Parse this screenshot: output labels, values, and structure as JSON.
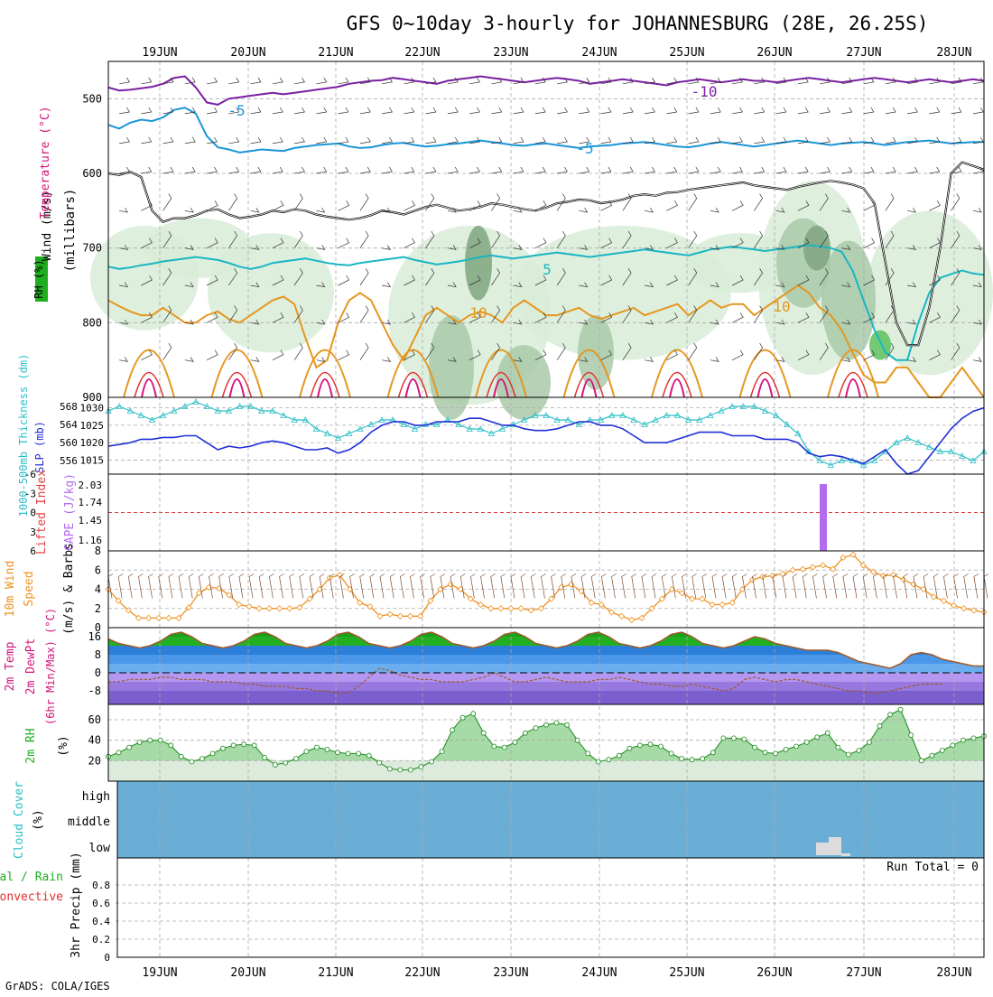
{
  "title": "GFS 0~10day 3-hourly for JOHANNESBURG (28E, 26.25S)",
  "footer": "GrADS: COLA/IGES",
  "dates": [
    "19JUN",
    "20JUN",
    "21JUN",
    "22JUN",
    "23JUN",
    "24JUN",
    "25JUN",
    "26JUN",
    "27JUN",
    "28JUN"
  ],
  "colors": {
    "grid": "#aaaaaa",
    "rh_green": "#1fae1f",
    "temp_purple": "#7b1fa2",
    "temp_blue": "#1a96d8",
    "temp_cyan": "#19b6c2",
    "temp_orange": "#e6961f",
    "temp_red": "#d4147c",
    "slp_blue": "#1f2fd6",
    "thick_cyan": "#2bbfc6",
    "cape_purple": "#b36cf0",
    "wind_orange": "#f0901f",
    "cloud_blue": "#6aaed6"
  },
  "panels": {
    "upper": {
      "ylabel_wind": "Wind (m/s)",
      "ylabel_temp": "Temperature (°C)",
      "ylabel_rh": "RH (%)",
      "ylabel_pres": "(millibars)",
      "yticks": [
        "500",
        "600",
        "700",
        "800",
        "900"
      ],
      "contour_labels": [
        "-10",
        "-5",
        "-5",
        "5",
        "10",
        "10"
      ]
    },
    "slp": {
      "ylabel_thick": "1000-500mb Thickness (dm)",
      "ylabel_slp": "SLP (mb)",
      "thick_ticks": [
        "568",
        "564",
        "560",
        "556"
      ],
      "slp_ticks": [
        "1030",
        "1025",
        "1020",
        "1015"
      ]
    },
    "cape": {
      "ylabel_li": "Lifted Index",
      "ylabel_cape": "CAPE (J/kg)",
      "li_ticks": [
        "-6",
        "-3",
        "0",
        "3",
        "6"
      ],
      "cape_ticks": [
        "2.03",
        "1.74",
        "1.45",
        "1.16"
      ]
    },
    "wind10": {
      "ylabel_a": "10m Wind",
      "ylabel_b": "Speed",
      "ylabel_c": "(m/s) & Barbs",
      "yticks": [
        "8",
        "6",
        "4",
        "2",
        "0"
      ]
    },
    "temp2m": {
      "ylabel_a": "2m Temp",
      "ylabel_b": "2m DewPt",
      "ylabel_c": "(6hr Min/Max) (°C)",
      "yticks": [
        "16",
        "8",
        "0",
        "-8"
      ]
    },
    "rh2m": {
      "ylabel_a": "2m RH",
      "ylabel_b": "(%)",
      "yticks": [
        "60",
        "40",
        "20"
      ]
    },
    "cloud": {
      "ylabel_a": "Cloud Cover",
      "ylabel_b": "(%)",
      "levels": [
        "high",
        "middle",
        "low"
      ]
    },
    "precip": {
      "ylabel_a": "Total / Rain",
      "ylabel_b": "Convective",
      "ylabel_c": "3hr Precip (mm)",
      "yticks": [
        "0.8",
        "0.6",
        "0.4",
        "0.2",
        "0"
      ],
      "run_total": "Run Total = 0"
    }
  },
  "chart_data": [
    {
      "type": "line",
      "name": "upper_air_isotherms",
      "x_unit": "3-hourly steps from 18JUN 12Z",
      "y_unit": "millibars",
      "ylim": [
        900,
        450
      ],
      "series": [
        {
          "name": "-10",
          "values": [
            485,
            489,
            488,
            486,
            484,
            480,
            472,
            470,
            485,
            505,
            508,
            500,
            498,
            496,
            494,
            492,
            494,
            492,
            490,
            488,
            486,
            484,
            480,
            478,
            476,
            475,
            472,
            474,
            476,
            478,
            480,
            476,
            474,
            472,
            470,
            472,
            474,
            476,
            478,
            476,
            474,
            472,
            474,
            476,
            480,
            478,
            476,
            474,
            476,
            478,
            480,
            482,
            478,
            476,
            474,
            476,
            478,
            476,
            474,
            476,
            476,
            478,
            476,
            474,
            472,
            474,
            476,
            478,
            476,
            474,
            472,
            474,
            476,
            478,
            476,
            474,
            476,
            478,
            476,
            474,
            476
          ]
        },
        {
          "name": "-5",
          "values": [
            535,
            540,
            532,
            528,
            530,
            525,
            515,
            512,
            520,
            550,
            565,
            568,
            572,
            570,
            568,
            569,
            570,
            566,
            564,
            562,
            561,
            560,
            564,
            566,
            565,
            562,
            560,
            559,
            562,
            564,
            563,
            561,
            560,
            558,
            556,
            558,
            560,
            562,
            563,
            561,
            560,
            562,
            564,
            566,
            564,
            563,
            562,
            560,
            559,
            558,
            560,
            562,
            564,
            565,
            563,
            560,
            558,
            560,
            562,
            564,
            562,
            560,
            558,
            556,
            558,
            560,
            562,
            560,
            559,
            558,
            560,
            562,
            560,
            558,
            557,
            556,
            558,
            560,
            559,
            558,
            558
          ]
        },
        {
          "name": "5",
          "values": [
            725,
            728,
            726,
            723,
            721,
            718,
            716,
            714,
            712,
            714,
            716,
            720,
            725,
            728,
            725,
            720,
            718,
            716,
            714,
            717,
            720,
            722,
            723,
            720,
            718,
            716,
            714,
            712,
            716,
            719,
            722,
            720,
            718,
            715,
            712,
            710,
            712,
            714,
            712,
            710,
            708,
            706,
            708,
            710,
            712,
            710,
            708,
            706,
            704,
            702,
            704,
            706,
            708,
            710,
            706,
            702,
            700,
            698,
            700,
            702,
            704,
            702,
            700,
            698,
            696,
            698,
            700,
            705,
            730,
            770,
            810,
            840,
            850,
            850,
            800,
            760,
            740,
            735,
            730,
            734,
            736
          ]
        },
        {
          "name": "10",
          "values": [
            770,
            778,
            785,
            790,
            790,
            780,
            790,
            800,
            800,
            790,
            785,
            795,
            800,
            790,
            780,
            770,
            765,
            775,
            820,
            860,
            850,
            800,
            770,
            760,
            770,
            800,
            830,
            850,
            820,
            790,
            780,
            790,
            800,
            790,
            785,
            790,
            800,
            780,
            770,
            780,
            790,
            790,
            785,
            780,
            790,
            795,
            790,
            785,
            780,
            790,
            785,
            780,
            775,
            790,
            780,
            770,
            780,
            775,
            775,
            790,
            780,
            770,
            760,
            750,
            760,
            780,
            790,
            810,
            840,
            870,
            880,
            880,
            860,
            860,
            880,
            900,
            900,
            880,
            860,
            880,
            900
          ]
        },
        {
          "name": "0 (freezing level)",
          "values": [
            600,
            602,
            598,
            605,
            650,
            665,
            660,
            660,
            656,
            650,
            648,
            655,
            660,
            658,
            655,
            650,
            652,
            648,
            650,
            655,
            658,
            660,
            662,
            660,
            656,
            650,
            652,
            655,
            650,
            645,
            642,
            646,
            650,
            648,
            645,
            640,
            642,
            645,
            648,
            650,
            646,
            640,
            638,
            635,
            636,
            640,
            638,
            635,
            630,
            628,
            630,
            626,
            625,
            622,
            620,
            618,
            616,
            614,
            612,
            616,
            618,
            620,
            622,
            618,
            615,
            612,
            610,
            612,
            615,
            620,
            640,
            720,
            800,
            830,
            830,
            780,
            700,
            600,
            585,
            590,
            595
          ]
        }
      ]
    },
    {
      "type": "line",
      "name": "slp_and_thickness",
      "series": [
        {
          "name": "SLP (mb)",
          "values": [
            1019,
            1019.5,
            1020,
            1021,
            1021,
            1021.5,
            1021.5,
            1022,
            1022,
            1020,
            1018,
            1019,
            1018.5,
            1019,
            1020,
            1020.5,
            1020,
            1019,
            1018,
            1018,
            1018.5,
            1017,
            1018,
            1020,
            1023,
            1025,
            1026,
            1026,
            1025,
            1025,
            1026,
            1026,
            1026,
            1027,
            1027,
            1026,
            1025,
            1025,
            1024,
            1023.5,
            1023.5,
            1024,
            1025,
            1026,
            1026,
            1025,
            1025,
            1024,
            1022,
            1020,
            1020,
            1020,
            1021,
            1022,
            1023,
            1023,
            1023,
            1022,
            1022,
            1022,
            1021,
            1021,
            1021,
            1020,
            1017,
            1016,
            1016.5,
            1016,
            1015,
            1014,
            1016,
            1018,
            1014,
            1011,
            1012,
            1016,
            1020,
            1024,
            1027,
            1029,
            1030
          ]
        },
        {
          "name": "1000-500mb Thickness (dm)",
          "values": [
            567,
            568,
            567,
            566,
            565,
            566,
            567,
            568,
            569,
            568,
            567,
            567,
            568,
            568,
            567,
            567,
            566,
            565,
            565,
            563,
            562,
            561,
            562,
            563,
            564,
            565,
            565,
            564,
            563,
            564,
            564,
            565,
            564,
            563,
            563,
            562,
            563,
            564,
            565,
            566,
            566,
            565,
            565,
            564,
            565,
            565,
            566,
            566,
            565,
            564,
            565,
            566,
            566,
            565,
            565,
            566,
            567,
            568,
            568,
            568,
            567,
            566,
            564,
            562,
            558,
            556,
            555,
            556,
            556,
            555,
            556,
            558,
            560,
            561,
            560,
            559,
            558,
            558,
            557,
            556,
            558
          ]
        }
      ]
    },
    {
      "type": "bar",
      "name": "cape",
      "note": "single CAPE bar near 26JUN 12Z",
      "categories": [
        "26JUN"
      ],
      "values": [
        2.03
      ]
    },
    {
      "type": "line",
      "name": "wind10m_speed",
      "y_unit": "m/s",
      "ylim": [
        0,
        8
      ],
      "values": [
        4,
        2.8,
        1.8,
        1,
        1,
        1,
        1,
        1,
        2.1,
        3.6,
        4.2,
        4.1,
        3.4,
        2.4,
        2.2,
        2.0,
        2.0,
        2.0,
        2.0,
        2.1,
        3.0,
        4.0,
        5.2,
        5.5,
        4.0,
        2.6,
        2.2,
        1.2,
        1.4,
        1.2,
        1.2,
        1.2,
        2.8,
        4.0,
        4.5,
        4.0,
        3.0,
        2.4,
        2.0,
        2.0,
        2.0,
        2.0,
        1.8,
        2.0,
        3.0,
        4.2,
        4.5,
        3.8,
        2.6,
        2.4,
        1.6,
        1.2,
        0.8,
        1.0,
        2.0,
        3.0,
        4.0,
        3.6,
        3.0,
        3.0,
        2.4,
        2.4,
        2.6,
        4.0,
        5.0,
        5.3,
        5.4,
        5.6,
        6.0,
        6.1,
        6.3,
        6.5,
        6.1,
        7.3,
        7.6,
        6.5,
        5.8,
        5.4,
        5.5,
        5.0,
        4.5,
        4.0,
        3.2,
        2.8,
        2.3,
        2.0,
        1.8,
        1.6
      ]
    },
    {
      "type": "area",
      "name": "temp2m",
      "y_unit": "°C",
      "ylim": [
        -14,
        20
      ],
      "series": [
        {
          "name": "2m Temp",
          "values": [
            15,
            13,
            12,
            11,
            12,
            14,
            17,
            18,
            16,
            13,
            12,
            11,
            12,
            14,
            17,
            18,
            16,
            13,
            12,
            11,
            12,
            14,
            17,
            18,
            16,
            13,
            12,
            11,
            12,
            14,
            17,
            18,
            16,
            13,
            12,
            11,
            12,
            14,
            17,
            18,
            16,
            13,
            12,
            11,
            12,
            14,
            17,
            18,
            16,
            13,
            12,
            11,
            12,
            14,
            17,
            18,
            16,
            13,
            12,
            11,
            12,
            14,
            16,
            15,
            13,
            12,
            11,
            10,
            10,
            10,
            9,
            7,
            5,
            4,
            3,
            2,
            4,
            8,
            9,
            8,
            6,
            5,
            4,
            3,
            3
          ]
        },
        {
          "name": "2m DewPt",
          "values": [
            -4,
            -4,
            -3,
            -3,
            -3,
            -2,
            -2,
            -3,
            -3,
            -3,
            -4,
            -4,
            -4,
            -5,
            -5,
            -6,
            -6,
            -6,
            -7,
            -7,
            -8,
            -8,
            -9,
            -9,
            -6,
            -2,
            2,
            1,
            -1,
            -2,
            -3,
            -3,
            -4,
            -4,
            -4,
            -3,
            -2,
            0,
            -2,
            -4,
            -4,
            -3,
            -2,
            -3,
            -4,
            -4,
            -4,
            -3,
            -3,
            -2,
            -3,
            -4,
            -5,
            -5,
            -6,
            -6,
            -5,
            -6,
            -7,
            -8,
            -7,
            -3,
            -2,
            -3,
            -4,
            -3,
            -3,
            -4,
            -5,
            -6,
            -7,
            -8,
            -8,
            -9,
            -9,
            -8,
            -7,
            -6,
            -5,
            -5,
            -5
          ]
        }
      ]
    },
    {
      "type": "area",
      "name": "rh2m",
      "y_unit": "%",
      "ylim": [
        0,
        75
      ],
      "values": [
        24,
        28,
        33,
        38,
        40,
        40,
        35,
        24,
        19,
        22,
        27,
        32,
        35,
        36,
        35,
        23,
        16,
        18,
        22,
        29,
        33,
        31,
        28,
        27,
        27,
        25,
        18,
        12,
        11,
        11,
        14,
        19,
        29,
        50,
        62,
        66,
        47,
        34,
        33,
        38,
        47,
        52,
        55,
        57,
        55,
        40,
        27,
        19,
        21,
        25,
        32,
        35,
        36,
        34,
        27,
        22,
        21,
        22,
        28,
        42,
        42,
        41,
        33,
        28,
        27,
        31,
        34,
        38,
        43,
        47,
        33,
        26,
        30,
        38,
        54,
        65,
        70,
        45,
        20,
        25,
        30,
        35,
        40,
        42,
        44
      ]
    },
    {
      "type": "bar",
      "name": "cloud_cover_low",
      "y_unit": "%",
      "note": "small low-cloud blocks near 26JUN 12Z-21Z",
      "categories": [
        "26JUN 12Z",
        "26JUN 15Z",
        "26JUN 18Z"
      ],
      "values": [
        50,
        100,
        10
      ]
    },
    {
      "type": "bar",
      "name": "precip3hr",
      "y_unit": "mm",
      "ylim": [
        0,
        1
      ],
      "categories": [],
      "values": []
    }
  ]
}
